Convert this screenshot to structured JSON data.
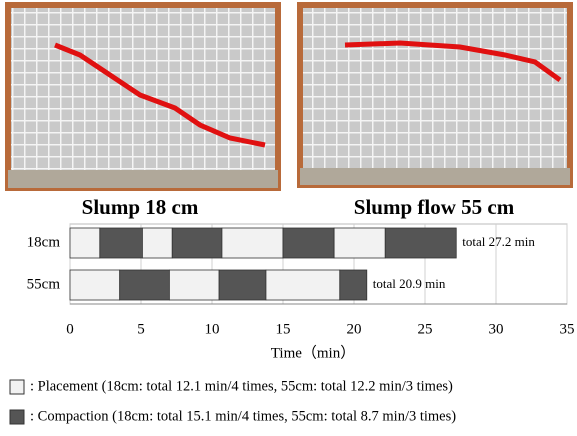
{
  "photo_titles": [
    "Slump 18 cm",
    "Slump flow 55 cm"
  ],
  "chart_data": {
    "type": "gantt-bar",
    "xlabel": "Time（min）",
    "xlim": [
      0,
      35
    ],
    "xticks": [
      0,
      5,
      10,
      15,
      20,
      25,
      30,
      35
    ],
    "grid": true,
    "series": [
      {
        "name": ": Placement  (18cm: total 12.1 min/4 times, 55cm: total 12.2 min/3 times)",
        "color": "#f2f2f2"
      },
      {
        "name": ": Compaction (18cm: total 15.1 min/4 times, 55cm: total 8.7 min/3 times)",
        "color": "#555555"
      }
    ],
    "bars": [
      {
        "category": "18cm",
        "segments": [
          2.1,
          3.0,
          2.1,
          3.5,
          4.3,
          3.6,
          3.6,
          5.0
        ],
        "annotation": "total 27.2 min"
      },
      {
        "category": "55cm",
        "segments": [
          3.5,
          3.5,
          3.5,
          3.3,
          5.2,
          1.9
        ],
        "annotation": "total 20.9 min"
      }
    ]
  }
}
